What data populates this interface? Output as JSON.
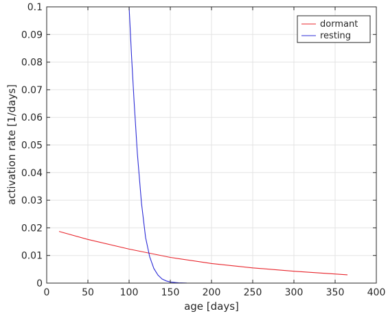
{
  "chart_data": {
    "type": "line",
    "title": "",
    "xlabel": "age [days]",
    "ylabel": "activation rate [1/days]",
    "xlim": [
      0,
      400
    ],
    "ylim": [
      0,
      0.1
    ],
    "xticks": [
      "0",
      "50",
      "100",
      "150",
      "200",
      "250",
      "300",
      "350",
      "400"
    ],
    "yticks": [
      "0",
      "0.01",
      "0.02",
      "0.03",
      "0.04",
      "0.05",
      "0.06",
      "0.07",
      "0.08",
      "0.09",
      "0.1"
    ],
    "grid": true,
    "legend_position": "top-right",
    "series": [
      {
        "name": "dormant",
        "color": "#e8242b",
        "x": [
          15,
          50,
          100,
          150,
          200,
          250,
          300,
          365
        ],
        "y": [
          0.0187,
          0.0158,
          0.0123,
          0.0093,
          0.0071,
          0.0055,
          0.0043,
          0.003
        ]
      },
      {
        "name": "resting",
        "color": "#2a2ad6",
        "x": [
          100,
          103,
          106,
          110,
          115,
          120,
          125,
          130,
          135,
          140,
          145,
          150,
          160,
          170,
          200,
          250,
          300,
          365
        ],
        "y": [
          0.1,
          0.082,
          0.066,
          0.047,
          0.029,
          0.0165,
          0.0095,
          0.0053,
          0.0029,
          0.0015,
          0.0008,
          0.0004,
          0.0001,
          3e-05,
          0,
          0,
          0,
          0
        ]
      }
    ]
  }
}
